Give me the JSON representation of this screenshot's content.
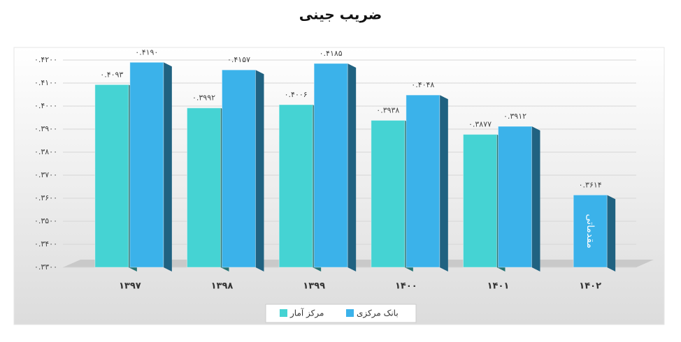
{
  "chart_data": {
    "type": "bar",
    "title": "ضریب جینی",
    "categories": [
      "۱۳۹۷",
      "۱۳۹۸",
      "۱۳۹۹",
      "۱۴۰۰",
      "۱۴۰۱",
      "۱۴۰۲"
    ],
    "series": [
      {
        "name": "مرکز آمار",
        "color": "#45d3d3",
        "values": [
          0.4093,
          0.3992,
          0.4006,
          0.3938,
          0.3877,
          null
        ],
        "value_labels": [
          "۰.۴۰۹۳",
          "۰.۳۹۹۲",
          "۰.۴۰۰۶",
          "۰.۳۹۳۸",
          "۰.۳۸۷۷",
          null
        ]
      },
      {
        "name": "بانک مرکزی",
        "color": "#3bb2ea",
        "values": [
          0.419,
          0.4157,
          0.4185,
          0.4048,
          0.3912,
          0.3614
        ],
        "value_labels": [
          "۰.۴۱۹۰",
          "۰.۴۱۵۷",
          "۰.۴۱۸۵",
          "۰.۴۰۴۸",
          "۰.۳۹۱۲",
          "۰.۳۶۱۴"
        ]
      }
    ],
    "annotation": "مقدماتی",
    "ylim": [
      0.33,
      0.42
    ],
    "yticks": [
      {
        "value": 0.33,
        "label": "۰.۳۳۰۰"
      },
      {
        "value": 0.34,
        "label": "۰.۳۴۰۰"
      },
      {
        "value": 0.35,
        "label": "۰.۳۵۰۰"
      },
      {
        "value": 0.36,
        "label": "۰.۳۶۰۰"
      },
      {
        "value": 0.37,
        "label": "۰.۳۷۰۰"
      },
      {
        "value": 0.38,
        "label": "۰.۳۸۰۰"
      },
      {
        "value": 0.39,
        "label": "۰.۳۹۰۰"
      },
      {
        "value": 0.4,
        "label": "۰.۴۰۰۰"
      },
      {
        "value": 0.41,
        "label": "۰.۴۱۰۰"
      },
      {
        "value": 0.42,
        "label": "۰.۴۲۰۰"
      }
    ],
    "grid": true,
    "legend": "bottom"
  }
}
